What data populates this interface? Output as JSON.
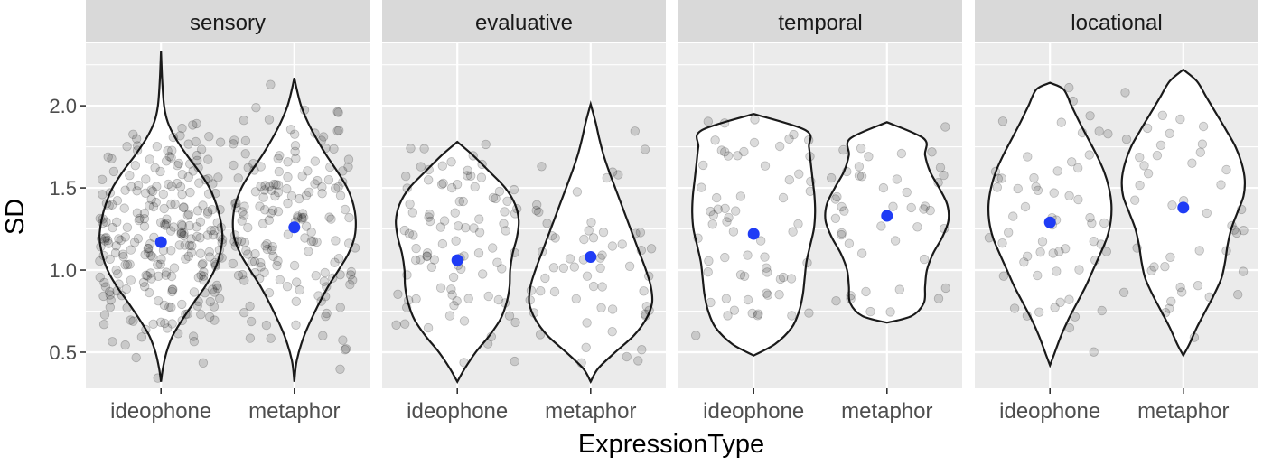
{
  "chart_data": {
    "type": "violin",
    "xlabel": "ExpressionType",
    "ylabel": "SD",
    "ylim": [
      0.28,
      2.38
    ],
    "yticks": [
      0.5,
      1.0,
      1.5,
      2.0
    ],
    "ytick_labels": [
      "0.5",
      "1.0",
      "1.5",
      "2.0"
    ],
    "categories": [
      "ideophone",
      "metaphor"
    ],
    "grid": true,
    "mean_color": "#1f3cf5",
    "panels": [
      {
        "facet": "sensory",
        "groups": [
          {
            "category": "ideophone",
            "mean": 1.17,
            "min": 0.32,
            "max": 2.33,
            "n": 260,
            "profile": [
              [
                0.32,
                0.0
              ],
              [
                0.4,
                0.03
              ],
              [
                0.5,
                0.09
              ],
              [
                0.6,
                0.19
              ],
              [
                0.7,
                0.35
              ],
              [
                0.8,
                0.53
              ],
              [
                0.9,
                0.72
              ],
              [
                1.0,
                0.87
              ],
              [
                1.1,
                0.96
              ],
              [
                1.2,
                1.0
              ],
              [
                1.3,
                0.97
              ],
              [
                1.4,
                0.9
              ],
              [
                1.5,
                0.79
              ],
              [
                1.6,
                0.62
              ],
              [
                1.7,
                0.42
              ],
              [
                1.8,
                0.24
              ],
              [
                1.9,
                0.11
              ],
              [
                2.0,
                0.05
              ],
              [
                2.15,
                0.02
              ],
              [
                2.33,
                0.0
              ]
            ]
          },
          {
            "category": "metaphor",
            "mean": 1.26,
            "min": 0.32,
            "max": 2.17,
            "n": 170,
            "profile": [
              [
                0.32,
                0.0
              ],
              [
                0.45,
                0.04
              ],
              [
                0.6,
                0.16
              ],
              [
                0.75,
                0.34
              ],
              [
                0.9,
                0.55
              ],
              [
                1.0,
                0.72
              ],
              [
                1.1,
                0.88
              ],
              [
                1.2,
                0.98
              ],
              [
                1.3,
                1.0
              ],
              [
                1.4,
                0.96
              ],
              [
                1.5,
                0.86
              ],
              [
                1.6,
                0.7
              ],
              [
                1.7,
                0.52
              ],
              [
                1.8,
                0.36
              ],
              [
                1.9,
                0.22
              ],
              [
                2.0,
                0.11
              ],
              [
                2.1,
                0.04
              ],
              [
                2.17,
                0.0
              ]
            ]
          }
        ]
      },
      {
        "facet": "evaluative",
        "groups": [
          {
            "category": "ideophone",
            "mean": 1.06,
            "min": 0.32,
            "max": 1.78,
            "n": 95,
            "profile": [
              [
                0.32,
                0.0
              ],
              [
                0.4,
                0.12
              ],
              [
                0.5,
                0.3
              ],
              [
                0.6,
                0.52
              ],
              [
                0.7,
                0.7
              ],
              [
                0.8,
                0.8
              ],
              [
                0.9,
                0.85
              ],
              [
                1.0,
                0.86
              ],
              [
                1.1,
                0.9
              ],
              [
                1.2,
                0.97
              ],
              [
                1.3,
                1.0
              ],
              [
                1.4,
                0.94
              ],
              [
                1.5,
                0.78
              ],
              [
                1.6,
                0.52
              ],
              [
                1.7,
                0.25
              ],
              [
                1.78,
                0.0
              ]
            ]
          },
          {
            "category": "metaphor",
            "mean": 1.08,
            "min": 0.32,
            "max": 2.01,
            "n": 60,
            "profile": [
              [
                0.32,
                0.0
              ],
              [
                0.4,
                0.12
              ],
              [
                0.5,
                0.4
              ],
              [
                0.6,
                0.7
              ],
              [
                0.7,
                0.9
              ],
              [
                0.8,
                1.0
              ],
              [
                0.9,
                0.98
              ],
              [
                1.0,
                0.9
              ],
              [
                1.1,
                0.8
              ],
              [
                1.2,
                0.7
              ],
              [
                1.3,
                0.6
              ],
              [
                1.4,
                0.5
              ],
              [
                1.5,
                0.4
              ],
              [
                1.6,
                0.3
              ],
              [
                1.7,
                0.21
              ],
              [
                1.8,
                0.14
              ],
              [
                1.9,
                0.08
              ],
              [
                2.01,
                0.0
              ]
            ]
          }
        ]
      },
      {
        "facet": "temporal",
        "groups": [
          {
            "category": "ideophone",
            "mean": 1.22,
            "min": 0.48,
            "max": 1.95,
            "n": 65,
            "profile": [
              [
                0.48,
                0.0
              ],
              [
                0.55,
                0.35
              ],
              [
                0.65,
                0.62
              ],
              [
                0.75,
                0.74
              ],
              [
                0.85,
                0.8
              ],
              [
                0.95,
                0.83
              ],
              [
                1.05,
                0.86
              ],
              [
                1.15,
                0.92
              ],
              [
                1.25,
                0.98
              ],
              [
                1.35,
                1.0
              ],
              [
                1.45,
                0.99
              ],
              [
                1.55,
                0.96
              ],
              [
                1.65,
                0.93
              ],
              [
                1.75,
                0.9
              ],
              [
                1.85,
                0.85
              ],
              [
                1.95,
                0.0
              ]
            ]
          },
          {
            "category": "metaphor",
            "mean": 1.33,
            "min": 0.68,
            "max": 1.9,
            "n": 45,
            "profile": [
              [
                0.68,
                0.0
              ],
              [
                0.72,
                0.4
              ],
              [
                0.8,
                0.6
              ],
              [
                0.9,
                0.62
              ],
              [
                1.0,
                0.65
              ],
              [
                1.1,
                0.75
              ],
              [
                1.2,
                0.9
              ],
              [
                1.3,
                1.0
              ],
              [
                1.4,
                0.98
              ],
              [
                1.5,
                0.85
              ],
              [
                1.6,
                0.7
              ],
              [
                1.7,
                0.62
              ],
              [
                1.8,
                0.6
              ],
              [
                1.9,
                0.0
              ]
            ]
          }
        ]
      },
      {
        "facet": "locational",
        "groups": [
          {
            "category": "ideophone",
            "mean": 1.29,
            "min": 0.42,
            "max": 2.14,
            "n": 60,
            "profile": [
              [
                0.42,
                0.0
              ],
              [
                0.5,
                0.08
              ],
              [
                0.6,
                0.18
              ],
              [
                0.7,
                0.3
              ],
              [
                0.8,
                0.44
              ],
              [
                0.9,
                0.58
              ],
              [
                1.0,
                0.7
              ],
              [
                1.1,
                0.82
              ],
              [
                1.2,
                0.93
              ],
              [
                1.3,
                0.99
              ],
              [
                1.4,
                1.0
              ],
              [
                1.5,
                0.96
              ],
              [
                1.6,
                0.88
              ],
              [
                1.7,
                0.76
              ],
              [
                1.8,
                0.62
              ],
              [
                1.9,
                0.48
              ],
              [
                2.0,
                0.35
              ],
              [
                2.1,
                0.22
              ],
              [
                2.14,
                0.0
              ]
            ]
          },
          {
            "category": "metaphor",
            "mean": 1.38,
            "min": 0.48,
            "max": 2.22,
            "n": 45,
            "profile": [
              [
                0.48,
                0.0
              ],
              [
                0.55,
                0.1
              ],
              [
                0.65,
                0.22
              ],
              [
                0.75,
                0.36
              ],
              [
                0.85,
                0.5
              ],
              [
                0.95,
                0.62
              ],
              [
                1.05,
                0.68
              ],
              [
                1.15,
                0.72
              ],
              [
                1.25,
                0.78
              ],
              [
                1.35,
                0.88
              ],
              [
                1.45,
                0.98
              ],
              [
                1.55,
                1.0
              ],
              [
                1.65,
                0.95
              ],
              [
                1.75,
                0.85
              ],
              [
                1.85,
                0.7
              ],
              [
                1.95,
                0.54
              ],
              [
                2.05,
                0.38
              ],
              [
                2.15,
                0.22
              ],
              [
                2.22,
                0.0
              ]
            ]
          }
        ]
      }
    ]
  }
}
